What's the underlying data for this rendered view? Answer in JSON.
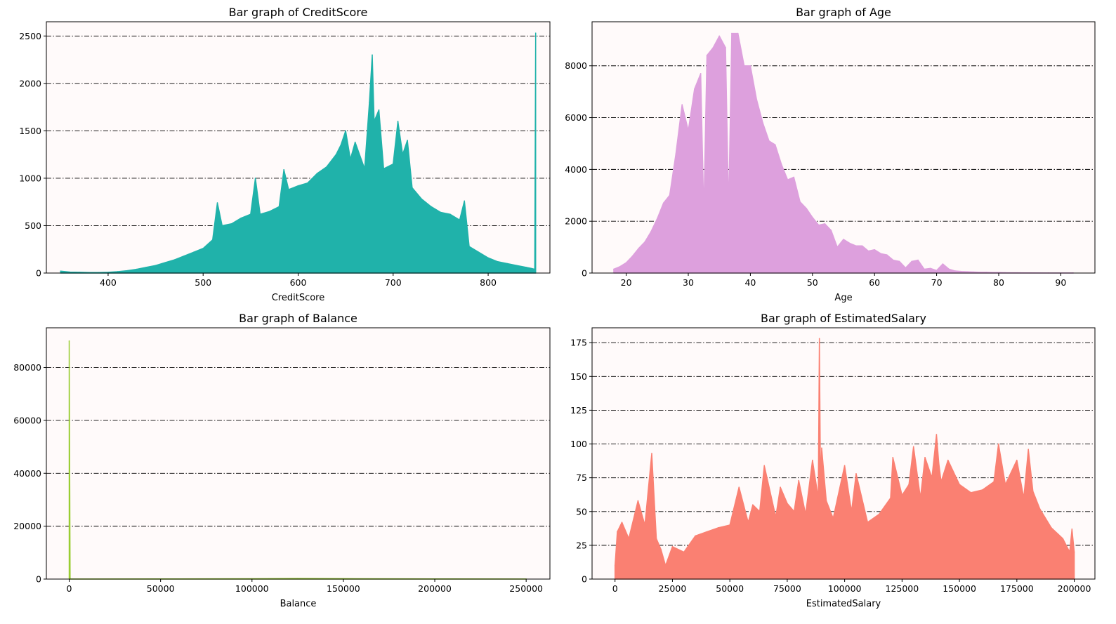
{
  "chart_data": [
    {
      "type": "area",
      "title": "Bar graph of CreditScore",
      "xlabel": "CreditScore",
      "ylabel": "",
      "color": "#20b2aa",
      "xlim": [
        335,
        865
      ],
      "ylim": [
        0,
        2650
      ],
      "xticks": [
        400,
        500,
        600,
        700,
        800
      ],
      "yticks": [
        0,
        500,
        1000,
        1500,
        2000,
        2500
      ],
      "grid": "horizontal dash-dot",
      "x": [
        350,
        360,
        370,
        380,
        390,
        400,
        410,
        420,
        430,
        440,
        450,
        460,
        470,
        480,
        490,
        500,
        510,
        515,
        520,
        530,
        540,
        550,
        555,
        560,
        570,
        580,
        585,
        590,
        600,
        610,
        620,
        630,
        640,
        645,
        650,
        655,
        660,
        670,
        675,
        678,
        680,
        685,
        690,
        700,
        705,
        710,
        715,
        720,
        730,
        740,
        750,
        760,
        770,
        775,
        780,
        790,
        800,
        810,
        820,
        830,
        840,
        845,
        849,
        850
      ],
      "values": [
        20,
        10,
        8,
        6,
        6,
        8,
        15,
        25,
        40,
        60,
        80,
        110,
        140,
        180,
        220,
        260,
        350,
        740,
        500,
        520,
        580,
        620,
        1000,
        620,
        650,
        700,
        1090,
        880,
        920,
        950,
        1050,
        1120,
        1250,
        1350,
        1500,
        1200,
        1380,
        1100,
        1800,
        2300,
        1600,
        1720,
        1100,
        1150,
        1600,
        1250,
        1400,
        900,
        780,
        700,
        640,
        620,
        560,
        760,
        280,
        220,
        160,
        120,
        100,
        80,
        60,
        50,
        40,
        2530
      ]
    },
    {
      "type": "area",
      "title": "Bar graph of Age",
      "xlabel": "Age",
      "ylabel": "",
      "color": "#dda0dd",
      "xlim": [
        14.5,
        95.5
      ],
      "ylim": [
        0,
        9700
      ],
      "xticks": [
        20,
        30,
        40,
        50,
        60,
        70,
        80,
        90
      ],
      "yticks": [
        0,
        2000,
        4000,
        6000,
        8000
      ],
      "grid": "horizontal dash-dot",
      "x": [
        18,
        19,
        20,
        21,
        22,
        23,
        24,
        25,
        26,
        27,
        28,
        29,
        30,
        31,
        32,
        32.5,
        33,
        34,
        35,
        36,
        36.5,
        37,
        38,
        39,
        40,
        41,
        42,
        43,
        44,
        45,
        46,
        47,
        48,
        49,
        50,
        51,
        52,
        53,
        54,
        55,
        56,
        57,
        58,
        59,
        60,
        61,
        62,
        63,
        64,
        65,
        66,
        67,
        68,
        69,
        70,
        71,
        72,
        73,
        74,
        75,
        76,
        77,
        78,
        79,
        80,
        81,
        82,
        83,
        84,
        85,
        88,
        92
      ],
      "values": [
        150,
        250,
        400,
        650,
        950,
        1200,
        1600,
        2100,
        2700,
        3000,
        4600,
        6500,
        5500,
        7100,
        7700,
        2300,
        8400,
        8700,
        9150,
        8700,
        2400,
        9250,
        9250,
        8000,
        8000,
        6700,
        5800,
        5100,
        4950,
        4200,
        3600,
        3700,
        2750,
        2500,
        2150,
        1850,
        1900,
        1650,
        1000,
        1300,
        1150,
        1050,
        1050,
        850,
        900,
        750,
        700,
        500,
        450,
        200,
        450,
        500,
        150,
        180,
        100,
        350,
        150,
        80,
        60,
        50,
        40,
        30,
        30,
        20,
        20,
        15,
        10,
        10,
        8,
        6,
        5,
        4
      ]
    },
    {
      "type": "area",
      "title": "Bar graph of Balance",
      "xlabel": "Balance",
      "ylabel": "",
      "color": "#9acd32",
      "xlim": [
        -12500,
        263000
      ],
      "ylim": [
        0,
        95000
      ],
      "xticks": [
        0,
        50000,
        100000,
        150000,
        200000,
        250000
      ],
      "yticks": [
        0,
        20000,
        40000,
        60000,
        80000
      ],
      "grid": "horizontal dash-dot",
      "x": [
        0,
        500,
        50000,
        100000,
        125000,
        150000,
        200000,
        250000
      ],
      "values": [
        90000,
        40,
        60,
        120,
        220,
        160,
        60,
        20
      ]
    },
    {
      "type": "area",
      "title": "Bar graph of EstimatedSalary",
      "xlabel": "EstimatedSalary",
      "ylabel": "",
      "color": "#fa8072",
      "xlim": [
        -10000,
        209000
      ],
      "ylim": [
        0,
        186
      ],
      "xticks": [
        0,
        25000,
        50000,
        75000,
        100000,
        125000,
        150000,
        175000,
        200000
      ],
      "yticks": [
        0,
        25,
        50,
        75,
        100,
        125,
        150,
        175
      ],
      "grid": "horizontal dash-dot",
      "x": [
        0,
        1000,
        3000,
        6000,
        10000,
        13000,
        16000,
        18000,
        20000,
        22000,
        25000,
        30000,
        35000,
        40000,
        45000,
        50000,
        54000,
        58000,
        60000,
        63000,
        65000,
        70000,
        72000,
        75000,
        78000,
        80000,
        83000,
        86000,
        88500,
        89000,
        89500,
        90000,
        92000,
        95000,
        100000,
        103000,
        105000,
        110000,
        115000,
        120000,
        121000,
        125000,
        128000,
        130000,
        133000,
        135000,
        138000,
        140000,
        141000,
        142000,
        145000,
        150000,
        155000,
        160000,
        165000,
        167000,
        170000,
        175000,
        178000,
        180000,
        182000,
        185000,
        190000,
        195000,
        198000,
        199000,
        200000
      ],
      "values": [
        10,
        35,
        42,
        30,
        58,
        40,
        93,
        30,
        22,
        10,
        24,
        20,
        32,
        35,
        38,
        40,
        68,
        42,
        55,
        50,
        84,
        46,
        68,
        56,
        50,
        73,
        48,
        88,
        60,
        178,
        70,
        97,
        58,
        45,
        84,
        50,
        78,
        42,
        48,
        60,
        90,
        62,
        70,
        98,
        60,
        90,
        75,
        107,
        86,
        72,
        88,
        70,
        64,
        66,
        72,
        100,
        70,
        88,
        60,
        96,
        65,
        52,
        38,
        30,
        20,
        37,
        20
      ]
    }
  ]
}
